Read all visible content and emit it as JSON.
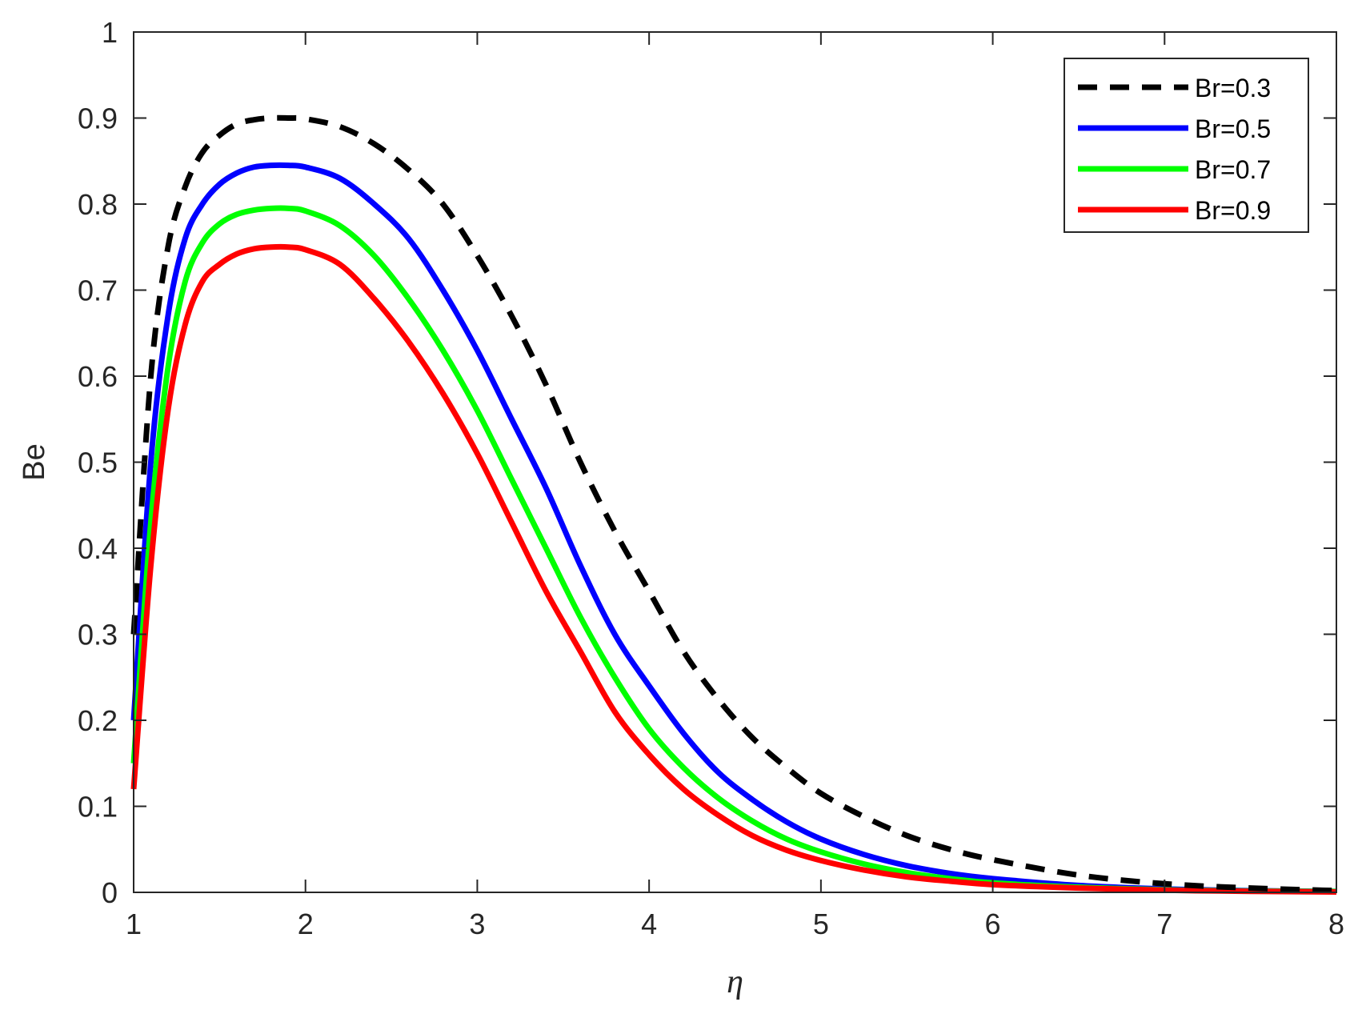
{
  "chart_data": {
    "type": "line",
    "xlabel": "η",
    "ylabel": "Be",
    "xlim": [
      1,
      8
    ],
    "ylim": [
      0,
      1
    ],
    "xticks": [
      "1",
      "2",
      "3",
      "4",
      "5",
      "6",
      "7",
      "8"
    ],
    "yticks": [
      "0",
      "0.1",
      "0.2",
      "0.3",
      "0.4",
      "0.5",
      "0.6",
      "0.7",
      "0.8",
      "0.9",
      "1"
    ],
    "grid": false,
    "box": true,
    "legend_position": "top-right",
    "x": [
      1.0,
      1.1,
      1.2,
      1.3,
      1.4,
      1.5,
      1.6,
      1.7,
      1.8,
      1.9,
      2.0,
      2.2,
      2.4,
      2.6,
      2.8,
      3.0,
      3.2,
      3.4,
      3.6,
      3.8,
      4.0,
      4.2,
      4.4,
      4.6,
      4.8,
      5.0,
      5.25,
      5.5,
      5.75,
      6.0,
      6.5,
      7.0,
      7.5,
      8.0
    ],
    "series": [
      {
        "name": "Br=0.3",
        "color": "#000000",
        "dash": true,
        "values": [
          0.3,
          0.6,
          0.75,
          0.82,
          0.86,
          0.88,
          0.893,
          0.898,
          0.9,
          0.9,
          0.899,
          0.89,
          0.87,
          0.84,
          0.8,
          0.74,
          0.67,
          0.59,
          0.5,
          0.42,
          0.35,
          0.28,
          0.225,
          0.18,
          0.145,
          0.115,
          0.088,
          0.066,
          0.05,
          0.038,
          0.02,
          0.01,
          0.005,
          0.002
        ]
      },
      {
        "name": "Br=0.5",
        "color": "#0000ff",
        "dash": false,
        "values": [
          0.2,
          0.5,
          0.67,
          0.76,
          0.8,
          0.823,
          0.836,
          0.843,
          0.845,
          0.845,
          0.843,
          0.83,
          0.8,
          0.76,
          0.7,
          0.63,
          0.55,
          0.47,
          0.38,
          0.3,
          0.24,
          0.185,
          0.14,
          0.108,
          0.082,
          0.062,
          0.044,
          0.031,
          0.022,
          0.016,
          0.008,
          0.004,
          0.002,
          0.001
        ]
      },
      {
        "name": "Br=0.7",
        "color": "#00ff00",
        "dash": false,
        "values": [
          0.15,
          0.43,
          0.61,
          0.71,
          0.755,
          0.777,
          0.788,
          0.793,
          0.795,
          0.795,
          0.792,
          0.775,
          0.74,
          0.69,
          0.63,
          0.56,
          0.48,
          0.4,
          0.32,
          0.25,
          0.19,
          0.145,
          0.11,
          0.083,
          0.062,
          0.047,
          0.033,
          0.023,
          0.016,
          0.011,
          0.006,
          0.003,
          0.0015,
          0.001
        ]
      },
      {
        "name": "Br=0.9",
        "color": "#ff0000",
        "dash": false,
        "values": [
          0.12,
          0.38,
          0.56,
          0.66,
          0.71,
          0.73,
          0.742,
          0.748,
          0.75,
          0.75,
          0.747,
          0.73,
          0.69,
          0.64,
          0.58,
          0.51,
          0.43,
          0.35,
          0.28,
          0.21,
          0.16,
          0.12,
          0.09,
          0.066,
          0.049,
          0.037,
          0.026,
          0.018,
          0.013,
          0.009,
          0.005,
          0.0025,
          0.0012,
          0.0005
        ]
      }
    ]
  }
}
